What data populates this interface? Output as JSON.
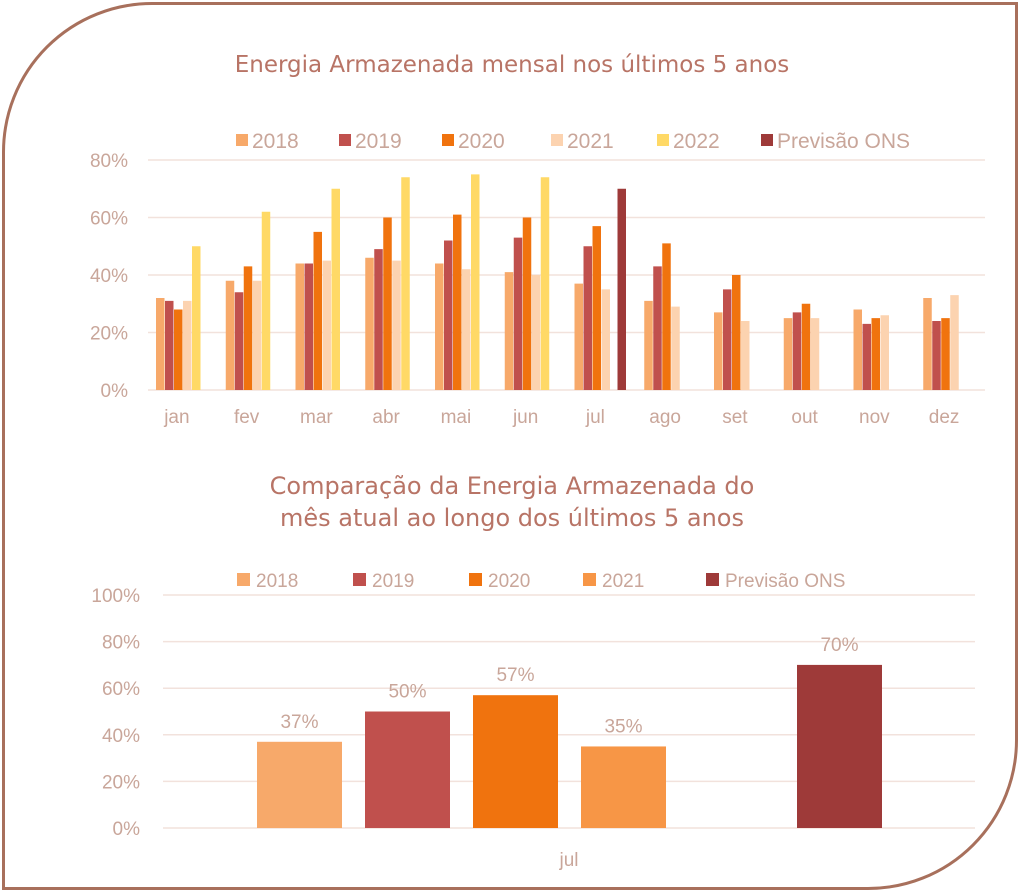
{
  "chart_data": [
    {
      "type": "bar",
      "title": "Energia Armazenada mensal nos últimos 5 anos",
      "xlabel": "",
      "ylabel": "",
      "ylim": [
        0,
        80
      ],
      "yticks": [
        "0%",
        "20%",
        "40%",
        "60%",
        "80%"
      ],
      "grid": true,
      "legend_position": "top",
      "categories": [
        "jan",
        "fev",
        "mar",
        "abr",
        "mai",
        "jun",
        "jul",
        "ago",
        "set",
        "out",
        "nov",
        "dez"
      ],
      "series": [
        {
          "name": "2018",
          "color": "#f7a96a",
          "values": [
            32,
            38,
            44,
            46,
            44,
            41,
            37,
            31,
            27,
            25,
            28,
            32
          ]
        },
        {
          "name": "2019",
          "color": "#c0504d",
          "values": [
            31,
            34,
            44,
            49,
            52,
            53,
            50,
            43,
            35,
            27,
            23,
            24
          ]
        },
        {
          "name": "2020",
          "color": "#f0730e",
          "values": [
            28,
            43,
            55,
            60,
            61,
            60,
            57,
            51,
            40,
            30,
            25,
            25
          ]
        },
        {
          "name": "2021",
          "color": "#fcd3b0",
          "values": [
            31,
            38,
            45,
            45,
            42,
            40,
            35,
            29,
            24,
            25,
            26,
            33
          ]
        },
        {
          "name": "2022",
          "color": "#ffd966",
          "values": [
            50,
            62,
            70,
            74,
            75,
            74,
            null,
            null,
            null,
            null,
            null,
            null
          ]
        },
        {
          "name": "Previsão ONS",
          "color": "#9e3a39",
          "values": [
            null,
            null,
            null,
            null,
            null,
            null,
            70,
            null,
            null,
            null,
            null,
            null
          ]
        }
      ]
    },
    {
      "type": "bar",
      "title": "Comparação da Energia Armazenada do mês atual ao longo dos últimos 5 anos",
      "title_lines": [
        "Comparação da Energia Armazenada do",
        "mês atual ao longo dos últimos 5 anos"
      ],
      "xlabel": "",
      "ylabel": "",
      "ylim": [
        0,
        100
      ],
      "yticks": [
        "0%",
        "20%",
        "40%",
        "60%",
        "80%",
        "100%"
      ],
      "grid": true,
      "legend_position": "top",
      "categories": [
        "jul"
      ],
      "series": [
        {
          "name": "2018",
          "color": "#f7a96a",
          "values": [
            37
          ],
          "label": "37%"
        },
        {
          "name": "2019",
          "color": "#c0504d",
          "values": [
            50
          ],
          "label": "50%"
        },
        {
          "name": "2020",
          "color": "#f0730e",
          "values": [
            57
          ],
          "label": "57%"
        },
        {
          "name": "2021",
          "color": "#f79646",
          "values": [
            35
          ],
          "label": "35%"
        },
        {
          "name": "Previsão ONS",
          "color": "#9e3a39",
          "values": [
            70
          ],
          "label": "70%"
        }
      ]
    }
  ],
  "colors": {
    "frame": "#a8705c",
    "title": "#b87466",
    "axis_text": "#c9a69a",
    "grid": "#f2e2dc"
  }
}
